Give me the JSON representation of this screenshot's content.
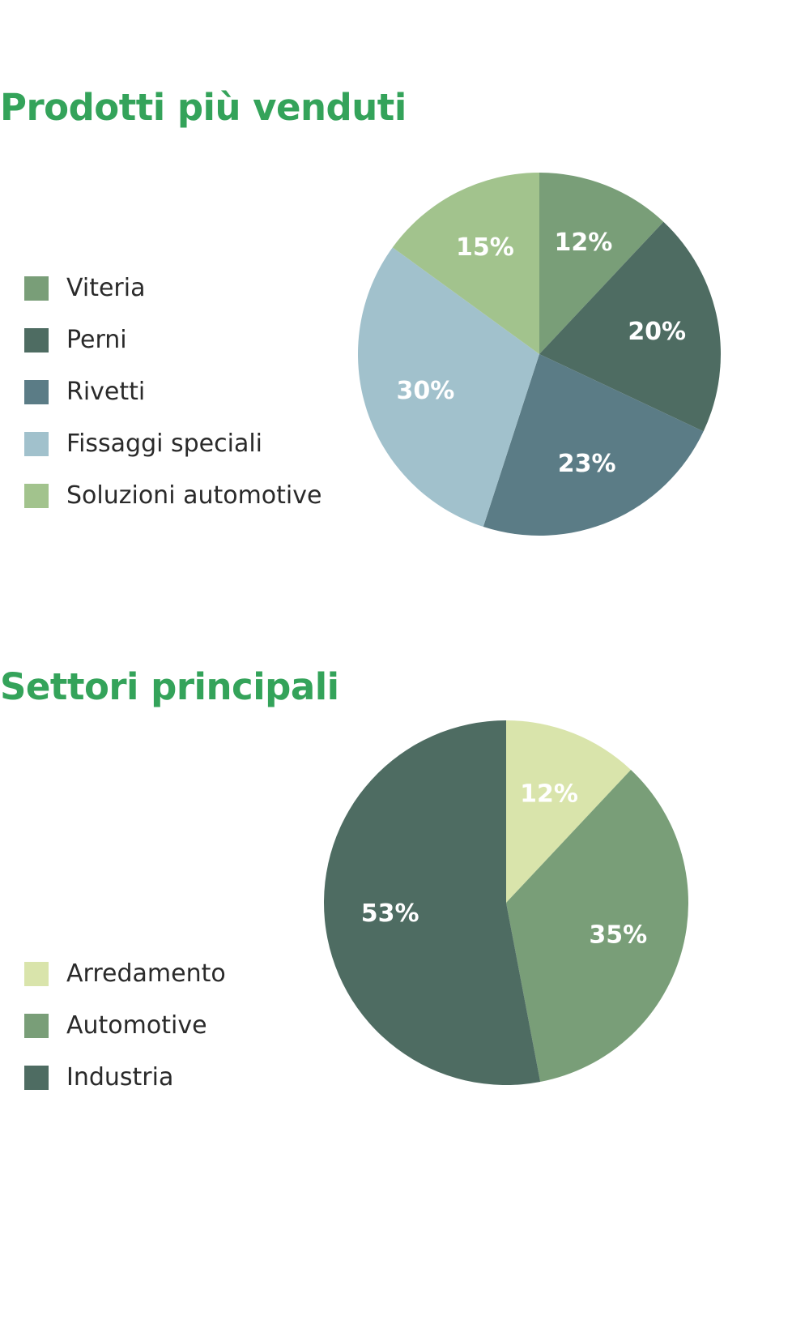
{
  "chart_data": [
    {
      "type": "pie",
      "title": "Prodotti più venduti",
      "colors": [
        "#799e78",
        "#4e6c62",
        "#5b7c86",
        "#a1c1cc",
        "#a2c38d"
      ],
      "slices": [
        {
          "label": "Viteria",
          "value": 12,
          "value_label": "12%"
        },
        {
          "label": "Perni",
          "value": 20,
          "value_label": "20%"
        },
        {
          "label": "Rivetti",
          "value": 23,
          "value_label": "23%"
        },
        {
          "label": "Fissaggi speciali",
          "value": 30,
          "value_label": "30%"
        },
        {
          "label": "Soluzioni automotive",
          "value": 15,
          "value_label": "15%"
        }
      ],
      "legend_position": "left"
    },
    {
      "type": "pie",
      "title": "Settori principali",
      "colors": [
        "#d9e4ab",
        "#799e78",
        "#4e6c62"
      ],
      "slices": [
        {
          "label": "Arredamento",
          "value": 12,
          "value_label": "12%"
        },
        {
          "label": "Automotive",
          "value": 35,
          "value_label": "35%"
        },
        {
          "label": "Industria",
          "value": 53,
          "value_label": "53%"
        }
      ],
      "legend_position": "left"
    }
  ]
}
